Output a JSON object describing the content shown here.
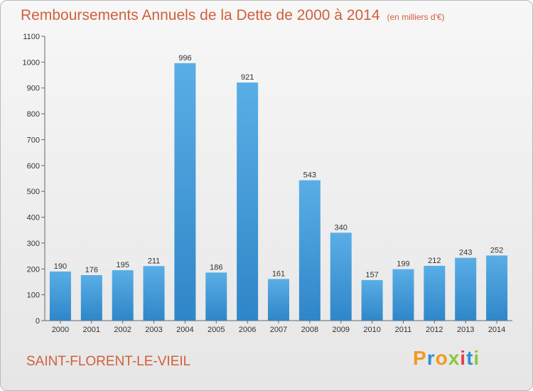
{
  "header": {
    "title": "Remboursements Annuels de la Dette de 2000 à 2014",
    "unit": "(en milliers d'€)"
  },
  "footer": {
    "location": "SAINT-FLORENT-LE-VIEIL",
    "logo": "Proxiti"
  },
  "colors": {
    "title": "#d0603b",
    "bar_top": "#5aaee6",
    "bar_bottom": "#2f86c8"
  },
  "chart_data": {
    "type": "bar",
    "title": "Remboursements Annuels de la Dette de 2000 à 2014",
    "subtitle": "(en milliers d'€)",
    "xlabel": "",
    "ylabel": "",
    "categories": [
      "2000",
      "2001",
      "2002",
      "2003",
      "2004",
      "2005",
      "2006",
      "2007",
      "2008",
      "2009",
      "2010",
      "2011",
      "2012",
      "2013",
      "2014"
    ],
    "values": [
      190,
      176,
      195,
      211,
      996,
      186,
      921,
      161,
      543,
      340,
      157,
      199,
      212,
      243,
      252
    ],
    "ylim": [
      0,
      1100
    ],
    "yticks": [
      0,
      100,
      200,
      300,
      400,
      500,
      600,
      700,
      800,
      900,
      1000,
      1100
    ],
    "grid": false,
    "legend": "none"
  }
}
